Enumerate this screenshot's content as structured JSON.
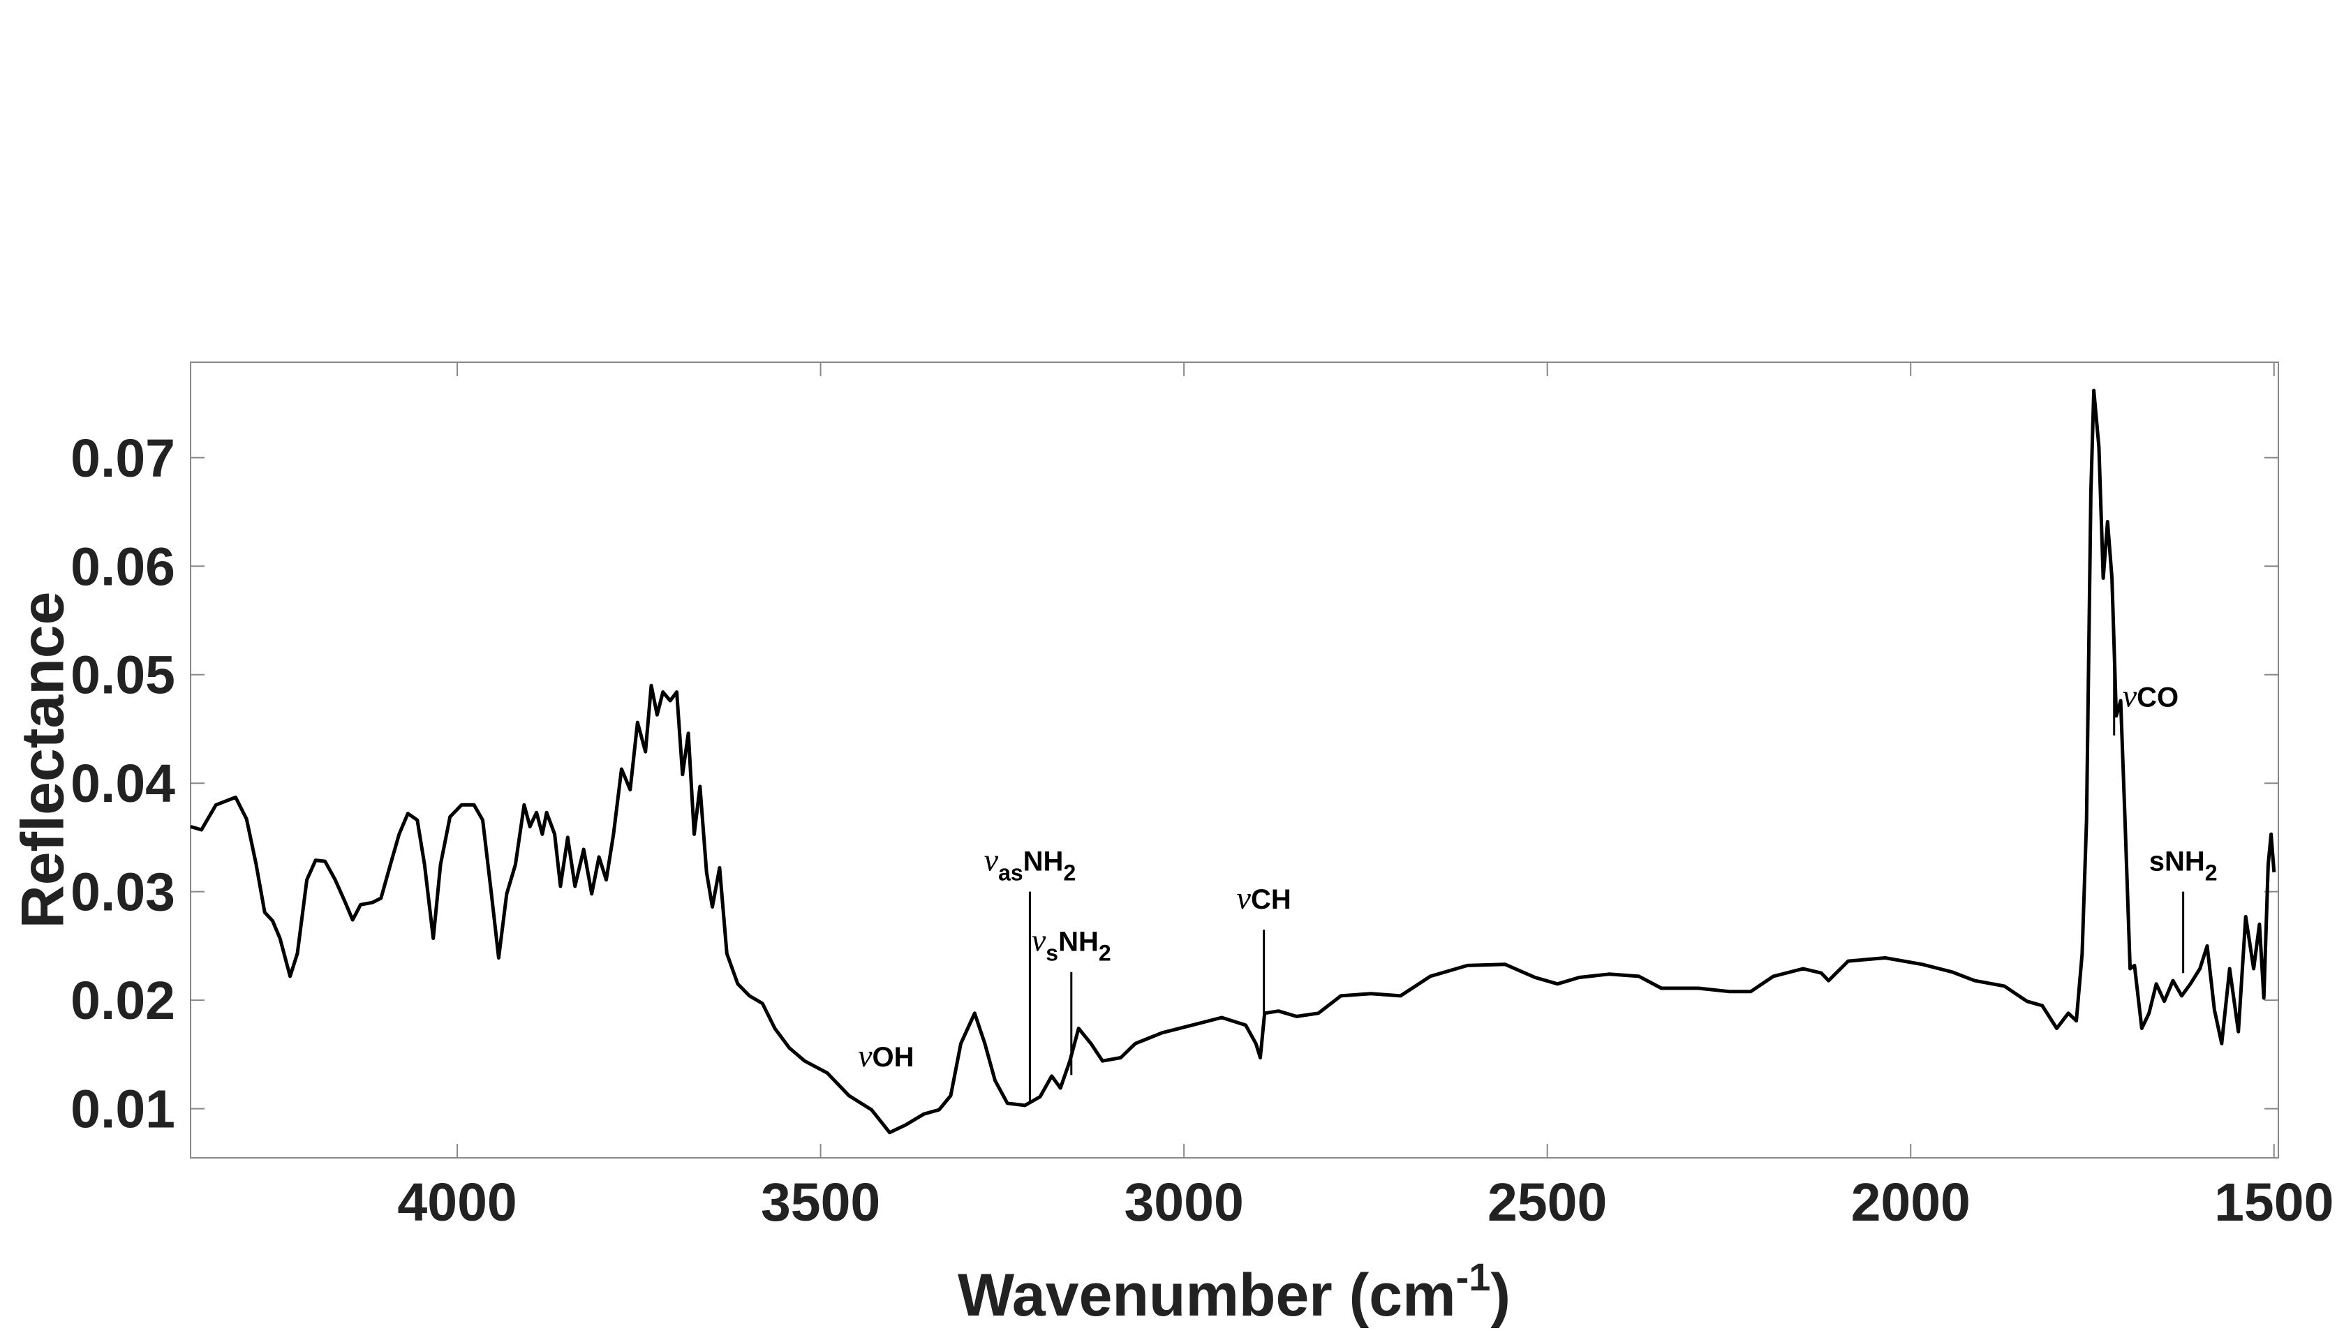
{
  "chart_data": {
    "type": "line",
    "y_label": "Reflectance",
    "x_label_parts": [
      {
        "text": "Wavenumber (cm"
      },
      {
        "text": "-1",
        "sup": true
      },
      {
        "text": ")"
      }
    ],
    "color": "#000000",
    "xlim": [
      4367,
      1494
    ],
    "ylim": [
      0.00547,
      0.0788
    ],
    "xticks": [
      4000,
      3500,
      3000,
      2500,
      2000,
      1500
    ],
    "yticks": [
      0.01,
      0.02,
      0.03,
      0.04,
      0.05,
      0.06,
      0.07
    ],
    "x": [
      4367,
      4352,
      4332,
      4305,
      4290,
      4277,
      4265,
      4254,
      4244,
      4230,
      4220,
      4207,
      4195,
      4182,
      4168,
      4154,
      4144,
      4133,
      4117,
      4105,
      4092,
      4080,
      4068,
      4055,
      4045,
      4033,
      4023,
      4010,
      3994,
      3977,
      3965,
      3953,
      3943,
      3932,
      3920,
      3908,
      3900,
      3891,
      3883,
      3877,
      3866,
      3858,
      3848,
      3838,
      3826,
      3815,
      3805,
      3795,
      3785,
      3774,
      3762,
      3752,
      3741,
      3733,
      3725,
      3717,
      3707,
      3698,
      3690,
      3682,
      3674,
      3666,
      3657,
      3649,
      3639,
      3629,
      3614,
      3598,
      3580,
      3563,
      3543,
      3522,
      3491,
      3461,
      3430,
      3405,
      3383,
      3358,
      3337,
      3321,
      3307,
      3288,
      3274,
      3260,
      3243,
      3219,
      3198,
      3182,
      3170,
      3157,
      3145,
      3128,
      3112,
      3087,
      3067,
      3030,
      2989,
      2948,
      2915,
      2901,
      2895,
      2889,
      2870,
      2845,
      2815,
      2784,
      2743,
      2702,
      2661,
      2610,
      2558,
      2517,
      2486,
      2456,
      2415,
      2374,
      2343,
      2292,
      2250,
      2220,
      2189,
      2148,
      2123,
      2113,
      2086,
      2035,
      1984,
      1943,
      1912,
      1871,
      1840,
      1819,
      1799,
      1783,
      1772,
      1764,
      1758,
      1752,
      1748,
      1741,
      1735,
      1729,
      1723,
      1717,
      1711,
      1705,
      1698,
      1692,
      1682,
      1672,
      1662,
      1651,
      1639,
      1627,
      1615,
      1602,
      1592,
      1582,
      1572,
      1561,
      1549,
      1539,
      1528,
      1520,
      1514,
      1508,
      1504,
      1500
    ],
    "values": [
      0.036,
      0.0357,
      0.038,
      0.0387,
      0.0367,
      0.0326,
      0.0281,
      0.0273,
      0.0257,
      0.0222,
      0.0243,
      0.0311,
      0.0329,
      0.0328,
      0.0311,
      0.029,
      0.0274,
      0.0288,
      0.029,
      0.0294,
      0.0325,
      0.0353,
      0.0372,
      0.0366,
      0.0325,
      0.0257,
      0.0325,
      0.0369,
      0.038,
      0.038,
      0.0366,
      0.0298,
      0.0239,
      0.0298,
      0.0325,
      0.038,
      0.036,
      0.0373,
      0.0353,
      0.0373,
      0.0353,
      0.0305,
      0.035,
      0.0305,
      0.0339,
      0.0298,
      0.0332,
      0.0311,
      0.0353,
      0.0413,
      0.0394,
      0.0456,
      0.0429,
      0.049,
      0.0463,
      0.0484,
      0.0476,
      0.0484,
      0.0408,
      0.0446,
      0.0353,
      0.0397,
      0.0318,
      0.0286,
      0.0322,
      0.0243,
      0.0215,
      0.0204,
      0.0197,
      0.0174,
      0.0156,
      0.0144,
      0.0133,
      0.0112,
      0.0099,
      0.0078,
      0.0085,
      0.0095,
      0.0099,
      0.0112,
      0.016,
      0.0188,
      0.016,
      0.0126,
      0.0105,
      0.0103,
      0.0111,
      0.013,
      0.0119,
      0.0144,
      0.0174,
      0.016,
      0.0144,
      0.0147,
      0.016,
      0.017,
      0.0177,
      0.0184,
      0.0177,
      0.016,
      0.0147,
      0.0188,
      0.019,
      0.0185,
      0.0188,
      0.0204,
      0.0206,
      0.0204,
      0.0222,
      0.0232,
      0.0233,
      0.0221,
      0.0215,
      0.0221,
      0.0224,
      0.0222,
      0.0211,
      0.0211,
      0.0208,
      0.0208,
      0.0222,
      0.0229,
      0.0225,
      0.0218,
      0.0236,
      0.0239,
      0.0233,
      0.0226,
      0.0218,
      0.0213,
      0.0199,
      0.0195,
      0.0174,
      0.0188,
      0.0181,
      0.0243,
      0.0366,
      0.0668,
      0.0762,
      0.071,
      0.0589,
      0.0641,
      0.0589,
      0.0462,
      0.0476,
      0.0366,
      0.0229,
      0.0232,
      0.0174,
      0.0188,
      0.0215,
      0.0199,
      0.0218,
      0.0204,
      0.0215,
      0.0229,
      0.025,
      0.0191,
      0.016,
      0.0229,
      0.0171,
      0.0277,
      0.0229,
      0.027,
      0.0202,
      0.0325,
      0.0353,
      0.0318
    ],
    "annotations": [
      {
        "parts": [
          {
            "text": "ν",
            "italic": true
          },
          {
            "text": "OH"
          }
        ],
        "x": 3410,
        "y": 0.0139
      },
      {
        "parts": [
          {
            "text": "ν",
            "italic": true
          },
          {
            "text": "as",
            "sub": true
          },
          {
            "text": "NH"
          },
          {
            "text": "2",
            "sub": true
          }
        ],
        "x": 3212,
        "line": [
          0.03,
          0.0105
        ]
      },
      {
        "parts": [
          {
            "text": "ν",
            "italic": true
          },
          {
            "text": "s",
            "sub": true
          },
          {
            "text": "NH"
          },
          {
            "text": "2",
            "sub": true
          }
        ],
        "x": 3155,
        "line": [
          0.0226,
          0.0131
        ]
      },
      {
        "parts": [
          {
            "text": "ν",
            "italic": true
          },
          {
            "text": "CH"
          }
        ],
        "x": 2890,
        "line": [
          0.0265,
          0.0185
        ]
      },
      {
        "parts": [
          {
            "text": "ν",
            "italic": true
          },
          {
            "text": "CO"
          }
        ],
        "x": 1720,
        "line": [
          0.0515,
          0.0444
        ],
        "side": "right"
      },
      {
        "parts": [
          {
            "text": "sNH"
          },
          {
            "text": "2",
            "sub": true
          }
        ],
        "x": 1625,
        "line": [
          0.03,
          0.0225
        ]
      }
    ]
  }
}
